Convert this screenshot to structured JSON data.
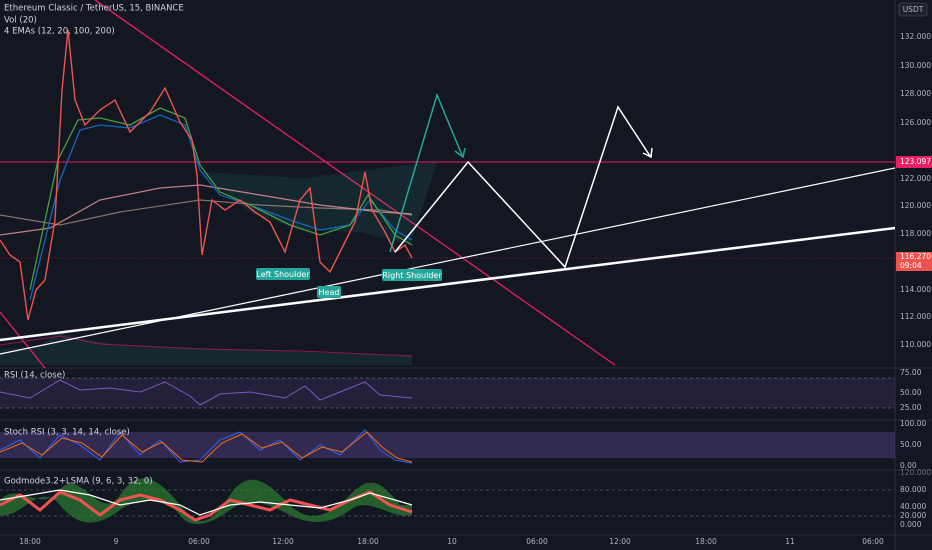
{
  "header": {
    "symbol": "Ethereum Classic / TetherUS, 15, BINANCE",
    "volume": "Vol (20)",
    "emas": "4 EMAs (12, 20, 100, 200)"
  },
  "currency": "USDT",
  "price_axis": {
    "ticks": [
      "132.000",
      "130.000",
      "128.000",
      "126.000",
      "122.000",
      "120.000",
      "118.000",
      "114.000",
      "112.000",
      "110.000"
    ],
    "resistance": "123.097",
    "last_price": "116.270",
    "countdown": "09:04"
  },
  "annotations": [
    "Left Shoulder",
    "Head",
    "Right Shoulder"
  ],
  "panes": [
    {
      "title": "RSI (14, close)",
      "ticks": [
        "75.00",
        "50.00",
        "25.00"
      ]
    },
    {
      "title": "Stoch RSI (3, 3, 14, 14, close)",
      "ticks": [
        "100.00",
        "50.00",
        "0.00"
      ]
    },
    {
      "title": "Godmode3.2+LSMA (9, 6, 3, 32, 0)",
      "ticks": [
        "120.000",
        "80.000",
        "40.000",
        "20.000",
        "0.000"
      ]
    }
  ],
  "time_axis": [
    "18:00",
    "9",
    "06:00",
    "12:00",
    "18:00",
    "10",
    "06:00",
    "12:00",
    "18:00",
    "11",
    "06:00"
  ]
}
